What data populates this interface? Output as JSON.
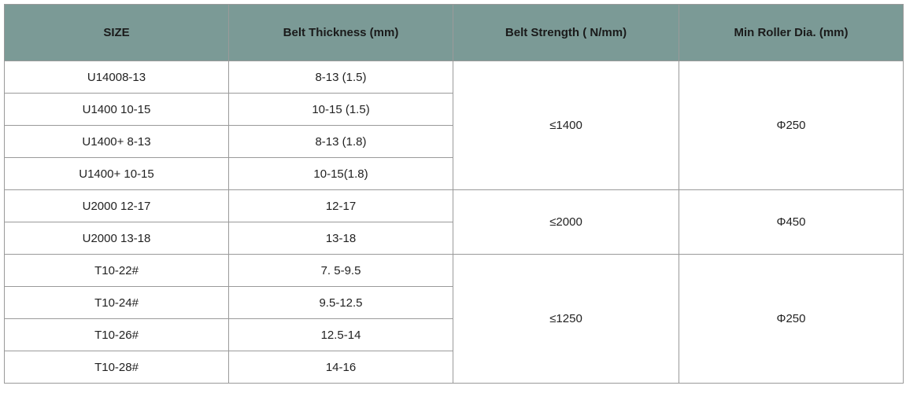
{
  "table": {
    "header": [
      "SIZE",
      "Belt Thickness (mm)",
      "Belt Strength ( N/mm)",
      "Min Roller Dia. (mm)"
    ],
    "groups": [
      {
        "rows": [
          [
            "U14008-13",
            "8-13 (1.5)"
          ],
          [
            "U1400 10-15",
            "10-15 (1.5)"
          ],
          [
            "U1400+ 8-13",
            "8-13 (1.8)"
          ],
          [
            "U1400+ 10-15",
            "10-15(1.8)"
          ]
        ],
        "strength": "≤1400",
        "roller": "Φ250"
      },
      {
        "rows": [
          [
            "U2000 12-17",
            "12-17"
          ],
          [
            "U2000 13-18",
            "13-18"
          ]
        ],
        "strength": "≤2000",
        "roller": "Φ450"
      },
      {
        "rows": [
          [
            "T10-22#",
            "7. 5-9.5"
          ],
          [
            "T10-24#",
            "9.5-12.5"
          ],
          [
            "T10-26#",
            "12.5-14"
          ],
          [
            "T10-28#",
            "14-16"
          ]
        ],
        "strength": "≤1250",
        "roller": "Φ250"
      }
    ]
  }
}
